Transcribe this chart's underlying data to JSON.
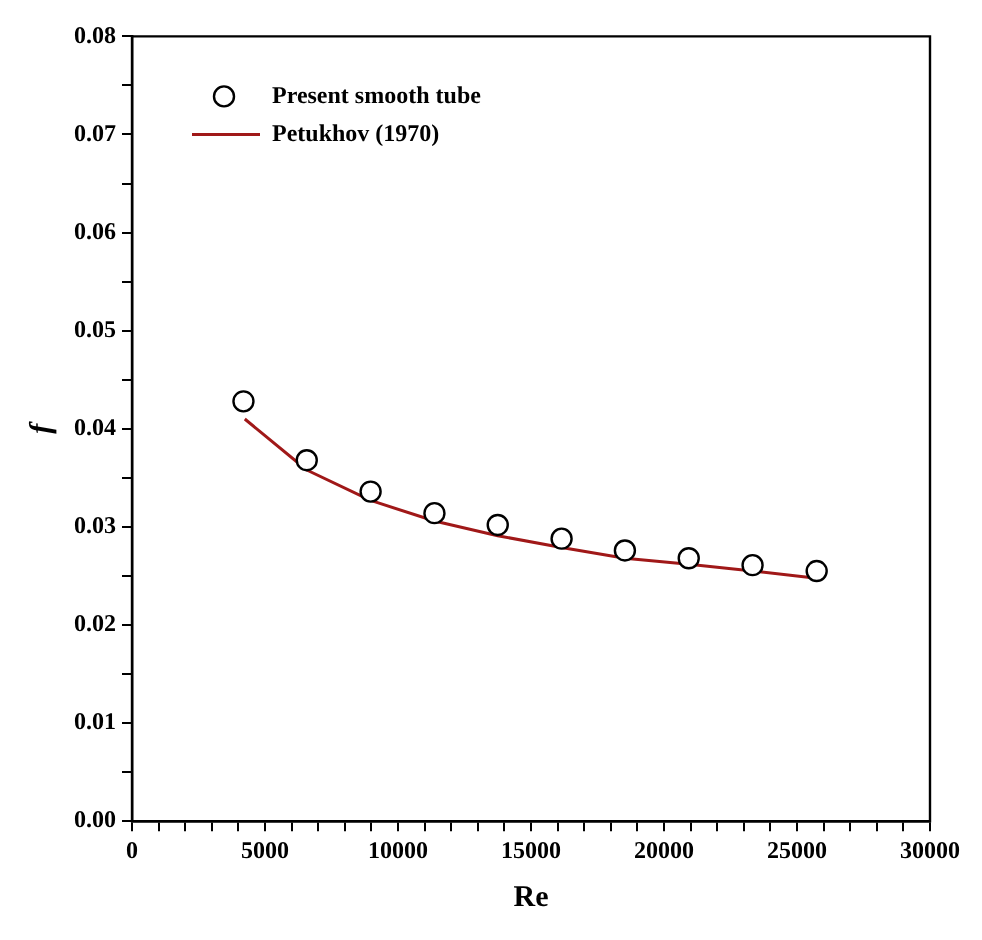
{
  "chart_data": {
    "type": "scatter",
    "xlabel": "Re",
    "ylabel": "f",
    "xlim": [
      0,
      30000
    ],
    "ylim": [
      0,
      0.08
    ],
    "xticks": [
      0,
      {
        "value": 1000,
        "label": null
      },
      {
        "value": 2000,
        "label": null
      },
      {
        "value": 3000,
        "label": null
      },
      {
        "value": 4000,
        "label": null
      },
      5000,
      {
        "value": 6000,
        "label": null
      },
      {
        "value": 7000,
        "label": null
      },
      {
        "value": 8000,
        "label": null
      },
      {
        "value": 9000,
        "label": null
      },
      10000,
      {
        "value": 11000,
        "label": null
      },
      {
        "value": 12000,
        "label": null
      },
      {
        "value": 13000,
        "label": null
      },
      {
        "value": 14000,
        "label": null
      },
      15000,
      {
        "value": 16000,
        "label": null
      },
      {
        "value": 17000,
        "label": null
      },
      {
        "value": 18000,
        "label": null
      },
      {
        "value": 19000,
        "label": null
      },
      20000,
      {
        "value": 21000,
        "label": null
      },
      {
        "value": 22000,
        "label": null
      },
      {
        "value": 23000,
        "label": null
      },
      {
        "value": 24000,
        "label": null
      },
      25000,
      {
        "value": 26000,
        "label": null
      },
      {
        "value": 27000,
        "label": null
      },
      {
        "value": 28000,
        "label": null
      },
      {
        "value": 29000,
        "label": null
      },
      30000
    ],
    "yticks": [
      {
        "value": 0,
        "label": "0.00"
      },
      {
        "value": 0.005,
        "label": null
      },
      {
        "value": 0.01,
        "label": "0.01"
      },
      {
        "value": 0.015,
        "label": null
      },
      {
        "value": 0.02,
        "label": "0.02"
      },
      {
        "value": 0.025,
        "label": null
      },
      {
        "value": 0.03,
        "label": "0.03"
      },
      {
        "value": 0.035,
        "label": null
      },
      {
        "value": 0.04,
        "label": "0.04"
      },
      {
        "value": 0.045,
        "label": null
      },
      {
        "value": 0.05,
        "label": "0.05"
      },
      {
        "value": 0.055,
        "label": null
      },
      {
        "value": 0.06,
        "label": "0.06"
      },
      {
        "value": 0.065,
        "label": null
      },
      {
        "value": 0.07,
        "label": "0.07"
      },
      {
        "value": 0.075,
        "label": null
      },
      {
        "value": 0.08,
        "label": "0.08"
      }
    ],
    "grid": false,
    "legend": "top left",
    "series": [
      {
        "name": "Present smooth tube",
        "type": "scatter",
        "marker": "circle",
        "color": "#000000",
        "x": [
          4190,
          6570,
          8970,
          11370,
          13750,
          16150,
          18530,
          20930,
          23330,
          25740
        ],
        "values": [
          0.0428,
          0.0368,
          0.0336,
          0.0314,
          0.0302,
          0.0288,
          0.0276,
          0.0268,
          0.0261,
          0.0255
        ]
      },
      {
        "name": "Petukhov (1970)",
        "type": "line",
        "marker": "none",
        "line_style": "solid",
        "color": "#a01818",
        "x": [
          4240,
          6570,
          8970,
          11370,
          13750,
          16150,
          18530,
          20930,
          23330,
          25650
        ],
        "values": [
          0.041,
          0.0358,
          0.0327,
          0.0306,
          0.0291,
          0.0279,
          0.0268,
          0.0262,
          0.0255,
          0.0248
        ]
      }
    ]
  }
}
